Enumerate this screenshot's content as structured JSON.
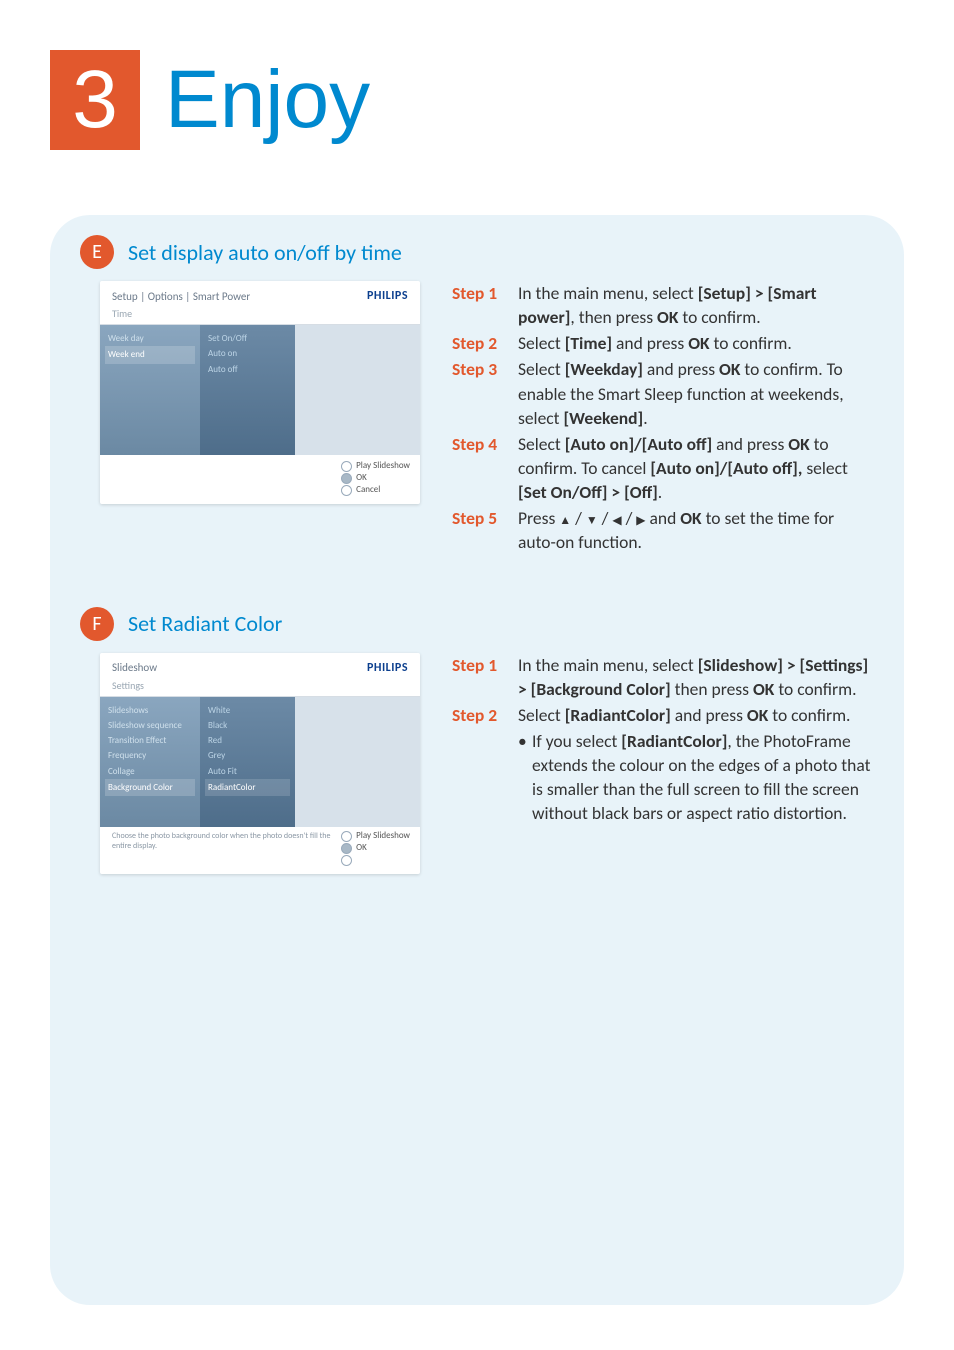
{
  "header": {
    "badge": "3",
    "title": "Enjoy"
  },
  "sectionE": {
    "letter": "E",
    "title": "Set display auto on/off by time",
    "mock": {
      "breadcrumb": "Setup | Options | Smart Power",
      "brand": "PHILIPS",
      "sub": "Time",
      "col1": [
        "Week day",
        "Week end"
      ],
      "col1_selected": 1,
      "col2": [
        "Set On/Off",
        "Auto on",
        "Auto off"
      ],
      "footer": {
        "top": "Play Slideshow",
        "mid": "OK",
        "bot": "Cancel"
      }
    },
    "steps": [
      {
        "label": "Step 1",
        "html": "In the main menu, select <b>[Setup] &gt; [Smart power]</b>, then press <b>OK</b> to confirm."
      },
      {
        "label": "Step 2",
        "html": "Select <b>[Time]</b> and press <b>OK</b> to confirm."
      },
      {
        "label": "Step 3",
        "html": "Select <b>[Weekday]</b> and press <b>OK</b> to confirm. To enable the Smart Sleep function at weekends, select <b>[Weekend]</b>."
      },
      {
        "label": "Step 4",
        "html": "Select <b>[Auto on]/[Auto off]</b> and press <b>OK</b> to confirm. To cancel <b>[Auto on]/[Auto off],</b> select <b>[Set On/Off] &gt; [Off]</b>."
      },
      {
        "label": "Step 5",
        "html": "Press <span class='arrow'>▲</span> / <span class='arrow'>▼</span> / <span class='arrow'>◀</span> / <span class='arrow'>▶</span>  and <b>OK</b> to set the time for auto-on function."
      }
    ]
  },
  "sectionF": {
    "letter": "F",
    "title": "Set Radiant Color",
    "mock": {
      "breadcrumb": "Slideshow",
      "brand": "PHILIPS",
      "sub": "Settings",
      "col1": [
        "Slideshows",
        "Slideshow sequence",
        "Transition Effect",
        "Frequency",
        "Collage",
        "Background Color"
      ],
      "col1_selected": 5,
      "col2": [
        "White",
        "Black",
        "Red",
        "Grey",
        "Auto Fit",
        "RadiantColor"
      ],
      "col2_selected": 5,
      "helper": "Choose the photo background color when the photo doesn't fill the entire display.",
      "footer": {
        "top": "Play Slideshow",
        "mid": "OK",
        "bot": ""
      }
    },
    "steps": [
      {
        "label": "Step 1",
        "html": "In the main menu, select <b>[Slideshow] &gt; [Settings] &gt; [Background Color]</b> then press <b>OK</b> to confirm."
      },
      {
        "label": "Step 2",
        "html": "Select <b>[RadiantColor]</b> and press <b>OK</b> to confirm."
      }
    ],
    "bullet": "If you select <b>[RadiantColor]</b>, the PhotoFrame extends the colour on the edges of a photo that is smaller than the full screen to fill the screen without black bars or aspect ratio distortion."
  }
}
